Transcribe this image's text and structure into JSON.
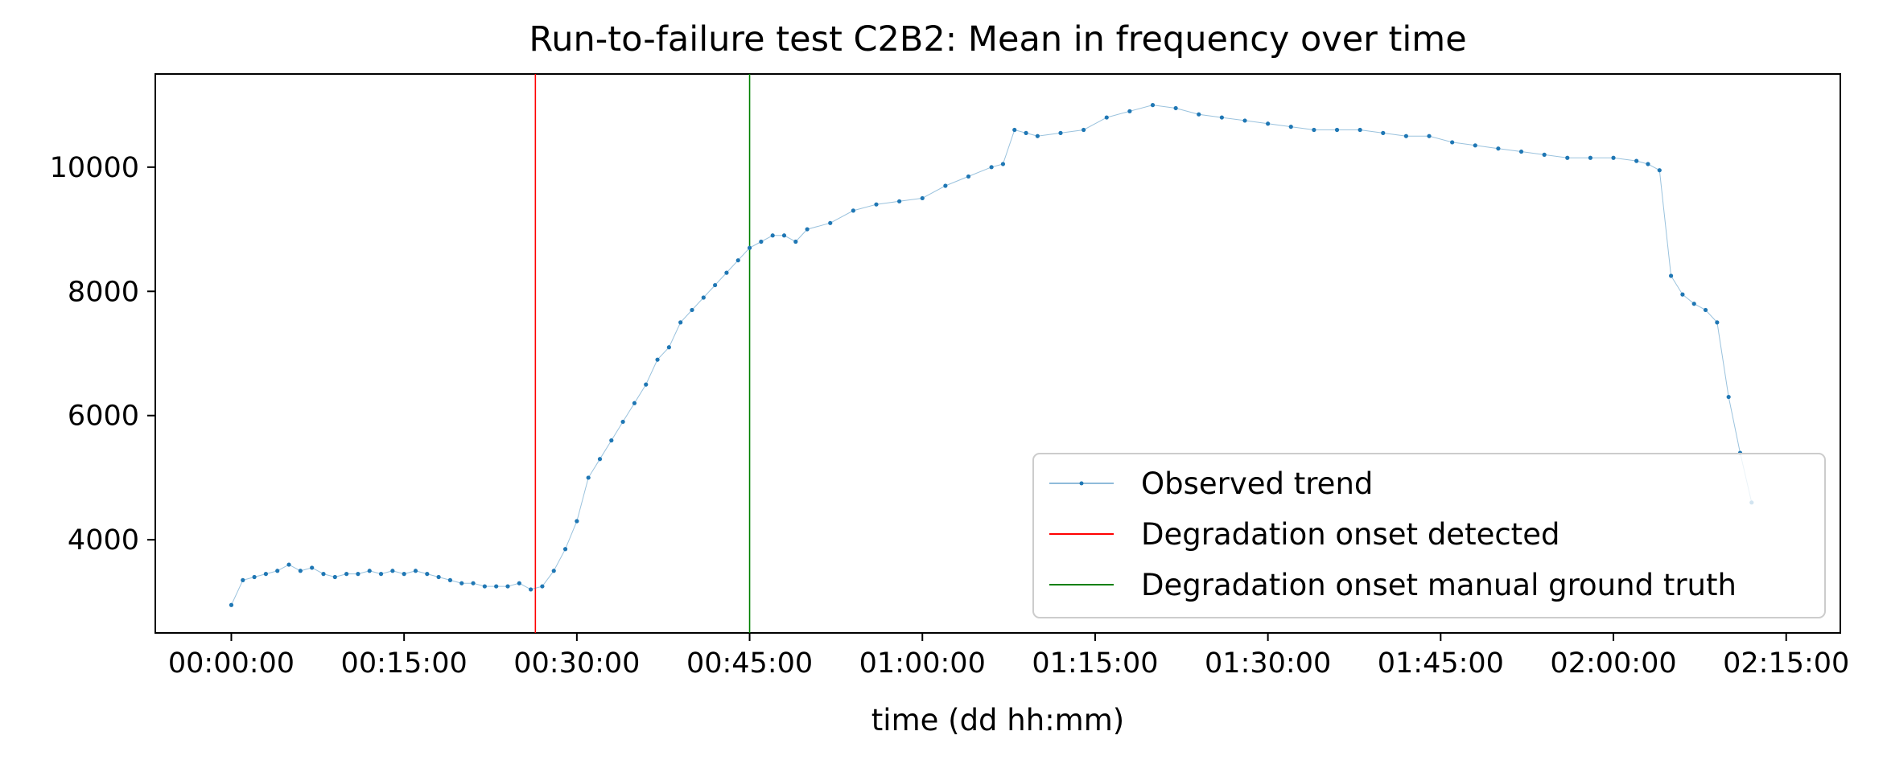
{
  "chart_data": {
    "type": "line",
    "title": "Run-to-failure test C2B2: Mean in frequency over time",
    "xlabel": "time (dd hh:mm)",
    "ylabel": "",
    "x_unit": "minutes",
    "x_tick_values": [
      0,
      15,
      30,
      45,
      60,
      75,
      90,
      105,
      120,
      135
    ],
    "x_tick_labels": [
      "00:00:00",
      "00:15:00",
      "00:30:00",
      "00:45:00",
      "01:00:00",
      "01:15:00",
      "01:30:00",
      "01:45:00",
      "02:00:00",
      "02:15:00"
    ],
    "y_ticks": [
      4000,
      6000,
      8000,
      10000
    ],
    "xlim": [
      -6.6,
      139.7
    ],
    "ylim": [
      2500,
      11500
    ],
    "grid": false,
    "legend_position": "lower right",
    "series": [
      {
        "name": "Observed trend",
        "color": "#1f77b4",
        "style": "thin line with dot markers",
        "x": [
          0,
          1,
          2,
          3,
          4,
          5,
          6,
          7,
          8,
          9,
          10,
          11,
          12,
          13,
          14,
          15,
          16,
          17,
          18,
          19,
          20,
          21,
          22,
          23,
          24,
          25,
          26,
          27,
          28,
          29,
          30,
          31,
          32,
          33,
          34,
          35,
          36,
          37,
          38,
          39,
          40,
          41,
          42,
          43,
          44,
          45,
          46,
          47,
          48,
          49,
          50,
          52,
          54,
          56,
          58,
          60,
          62,
          64,
          66,
          67,
          68,
          69,
          70,
          72,
          74,
          76,
          78,
          80,
          82,
          84,
          86,
          88,
          90,
          92,
          94,
          96,
          98,
          100,
          102,
          104,
          106,
          108,
          110,
          112,
          114,
          116,
          118,
          120,
          122,
          123,
          124,
          125,
          126,
          127,
          128,
          129,
          130,
          131,
          132
        ],
        "y": [
          2950,
          3350,
          3400,
          3450,
          3500,
          3600,
          3500,
          3550,
          3450,
          3400,
          3450,
          3450,
          3500,
          3450,
          3500,
          3450,
          3500,
          3450,
          3400,
          3350,
          3300,
          3300,
          3250,
          3250,
          3250,
          3300,
          3200,
          3250,
          3500,
          3850,
          4300,
          5000,
          5300,
          5600,
          5900,
          6200,
          6500,
          6900,
          7100,
          7500,
          7700,
          7900,
          8100,
          8300,
          8500,
          8700,
          8800,
          8900,
          8900,
          8800,
          9000,
          9100,
          9300,
          9400,
          9450,
          9500,
          9700,
          9850,
          10000,
          10050,
          10600,
          10550,
          10500,
          10550,
          10600,
          10800,
          10900,
          11000,
          10950,
          10850,
          10800,
          10750,
          10700,
          10650,
          10600,
          10600,
          10600,
          10550,
          10500,
          10500,
          10400,
          10350,
          10300,
          10250,
          10200,
          10150,
          10150,
          10150,
          10100,
          10050,
          9950,
          8250,
          7950,
          7800,
          7700,
          7500,
          6300,
          5400,
          4600
        ]
      }
    ],
    "vertical_lines": [
      {
        "name": "Degradation onset detected",
        "x": 26.4,
        "color": "#ff0000"
      },
      {
        "name": "Degradation onset manual ground truth",
        "x": 45.0,
        "color": "#008000"
      }
    ]
  }
}
